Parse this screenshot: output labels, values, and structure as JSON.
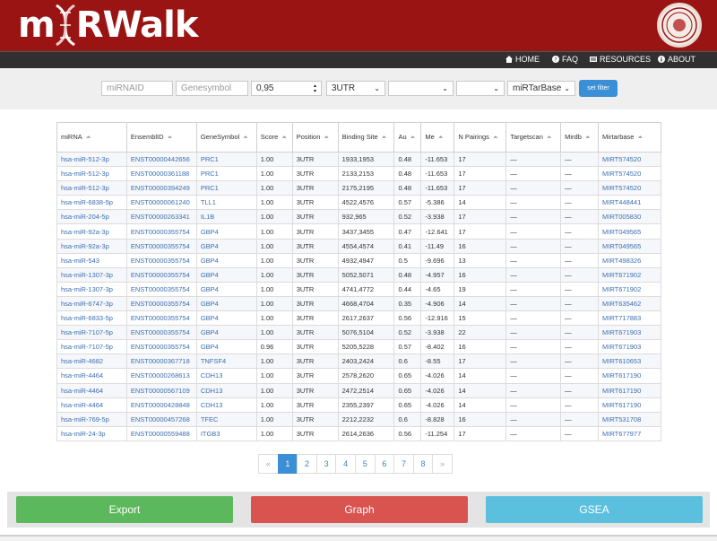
{
  "brand": {
    "logo_text_m": "m",
    "logo_text_rest": "RWalk",
    "header_color": "#9b1414"
  },
  "nav": {
    "items": [
      {
        "icon": "home-icon",
        "label": "HOME"
      },
      {
        "icon": "question-icon",
        "label": "FAQ"
      },
      {
        "icon": "list-icon",
        "label": "RESOURCES"
      },
      {
        "icon": "info-icon",
        "label": "ABOUT"
      }
    ]
  },
  "filters": {
    "mirna_placeholder": "miRNAID",
    "gene_placeholder": "Genesymbol",
    "score_value": "0,95",
    "position_value": "3UTR",
    "select3_value": "",
    "select4_value": "",
    "database_value": "miRTarBase",
    "set_filter_label": "set filter"
  },
  "table": {
    "columns": [
      "miRNA",
      "EnsemblID",
      "GeneSymbol",
      "Score",
      "Position",
      "Binding Site",
      "Au",
      "Me",
      "N Pairings",
      "Targetscan",
      "Mirdb",
      "Mirtarbase"
    ],
    "rows": [
      [
        "hsa-miR-512-3p",
        "ENST00000442656",
        "PRC1",
        "1.00",
        "3UTR",
        "1933,1953",
        "0.48",
        "-11.653",
        "17",
        "—",
        "—",
        "MIRT574520"
      ],
      [
        "hsa-miR-512-3p",
        "ENST00000361188",
        "PRC1",
        "1.00",
        "3UTR",
        "2133,2153",
        "0.48",
        "-11.653",
        "17",
        "—",
        "—",
        "MIRT574520"
      ],
      [
        "hsa-miR-512-3p",
        "ENST00000394249",
        "PRC1",
        "1.00",
        "3UTR",
        "2175,2195",
        "0.48",
        "-11.653",
        "17",
        "—",
        "—",
        "MIRT574520"
      ],
      [
        "hsa-miR-6838-5p",
        "ENST00000061240",
        "TLL1",
        "1.00",
        "3UTR",
        "4522,4576",
        "0.57",
        "-5.386",
        "14",
        "—",
        "—",
        "MIRT448441"
      ],
      [
        "hsa-miR-204-5p",
        "ENST00000263341",
        "IL1B",
        "1.00",
        "3UTR",
        "932,965",
        "0.52",
        "-3.938",
        "17",
        "—",
        "—",
        "MIRT005830"
      ],
      [
        "hsa-miR-92a-3p",
        "ENST00000355754",
        "GBP4",
        "1.00",
        "3UTR",
        "3437,3455",
        "0.47",
        "-12.641",
        "17",
        "—",
        "—",
        "MIRT049565"
      ],
      [
        "hsa-miR-92a-3p",
        "ENST00000355754",
        "GBP4",
        "1.00",
        "3UTR",
        "4554,4574",
        "0.41",
        "-11.49",
        "16",
        "—",
        "—",
        "MIRT049565"
      ],
      [
        "hsa-miR-543",
        "ENST00000355754",
        "GBP4",
        "1.00",
        "3UTR",
        "4932,4947",
        "0.5",
        "-9.696",
        "13",
        "—",
        "—",
        "MIRT498326"
      ],
      [
        "hsa-miR-1307-3p",
        "ENST00000355754",
        "GBP4",
        "1.00",
        "3UTR",
        "5052,5071",
        "0.48",
        "-4.957",
        "16",
        "—",
        "—",
        "MIRT671902"
      ],
      [
        "hsa-miR-1307-3p",
        "ENST00000355754",
        "GBP4",
        "1.00",
        "3UTR",
        "4741,4772",
        "0.44",
        "-4.65",
        "19",
        "—",
        "—",
        "MIRT671902"
      ],
      [
        "hsa-miR-6747-3p",
        "ENST00000355754",
        "GBP4",
        "1.00",
        "3UTR",
        "4668,4704",
        "0.35",
        "-4.906",
        "14",
        "—",
        "—",
        "MIRT635462"
      ],
      [
        "hsa-miR-6833-5p",
        "ENST00000355754",
        "GBP4",
        "1.00",
        "3UTR",
        "2617,2637",
        "0.56",
        "-12.916",
        "15",
        "—",
        "—",
        "MIRT717883"
      ],
      [
        "hsa-miR-7107-5p",
        "ENST00000355754",
        "GBP4",
        "1.00",
        "3UTR",
        "5076,5104",
        "0.52",
        "-3.938",
        "22",
        "—",
        "—",
        "MIRT671903"
      ],
      [
        "hsa-miR-7107-5p",
        "ENST00000355754",
        "GBP4",
        "0.96",
        "3UTR",
        "5205,5228",
        "0.57",
        "-8.402",
        "16",
        "—",
        "—",
        "MIRT671903"
      ],
      [
        "hsa-miR-4682",
        "ENST00000367718",
        "TNFSF4",
        "1.00",
        "3UTR",
        "2403,2424",
        "0.6",
        "-8.55",
        "17",
        "—",
        "—",
        "MIRT610653"
      ],
      [
        "hsa-miR-4464",
        "ENST00000268613",
        "CDH13",
        "1.00",
        "3UTR",
        "2578,2620",
        "0.65",
        "-4.026",
        "14",
        "—",
        "—",
        "MIRT617190"
      ],
      [
        "hsa-miR-4464",
        "ENST00000567109",
        "CDH13",
        "1.00",
        "3UTR",
        "2472,2514",
        "0.65",
        "-4.026",
        "14",
        "—",
        "—",
        "MIRT617190"
      ],
      [
        "hsa-miR-4464",
        "ENST00000428848",
        "CDH13",
        "1.00",
        "3UTR",
        "2355,2397",
        "0.65",
        "-4.026",
        "14",
        "—",
        "—",
        "MIRT617190"
      ],
      [
        "hsa-miR-769-5p",
        "ENST00000457268",
        "TFEC",
        "1.00",
        "3UTR",
        "2212,2232",
        "0.6",
        "-8.828",
        "16",
        "—",
        "—",
        "MIRT531708"
      ],
      [
        "hsa-miR-24-3p",
        "ENST00000559488",
        "ITGB3",
        "1.00",
        "3UTR",
        "2614,2636",
        "0.56",
        "-11.254",
        "17",
        "—",
        "—",
        "MIRT677977"
      ]
    ]
  },
  "pagination": {
    "prev": "«",
    "pages": [
      "1",
      "2",
      "3",
      "4",
      "5",
      "6",
      "7",
      "8"
    ],
    "next": "»",
    "active": "1"
  },
  "actions": {
    "export_label": "Export",
    "graph_label": "Graph",
    "gsea_label": "GSEA",
    "export_color": "#5cb85c",
    "graph_color": "#d9534f",
    "gsea_color": "#5bc0de"
  }
}
